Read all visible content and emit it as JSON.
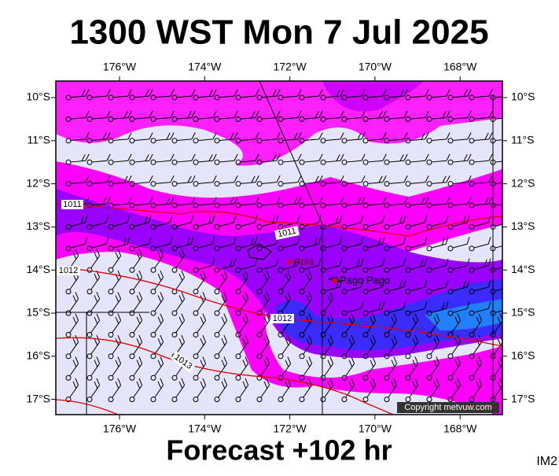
{
  "header": {
    "title": "1300 WST Mon 7 Jul 2025"
  },
  "footer": {
    "forecast": "Forecast +102 hr",
    "code": "IM2"
  },
  "axes": {
    "lon_labels": [
      "176°W",
      "174°W",
      "172°W",
      "170°W",
      "168°W"
    ],
    "lat_labels": [
      "10°S",
      "11°S",
      "12°S",
      "13°S",
      "14°S",
      "15°S",
      "16°S",
      "17°S"
    ]
  },
  "places": [
    "Apia",
    "Pago Pago"
  ],
  "isobars": [
    "1011",
    "1011",
    "1012",
    "1012",
    "1013"
  ],
  "copyright": "Copyright metvuw.com"
}
